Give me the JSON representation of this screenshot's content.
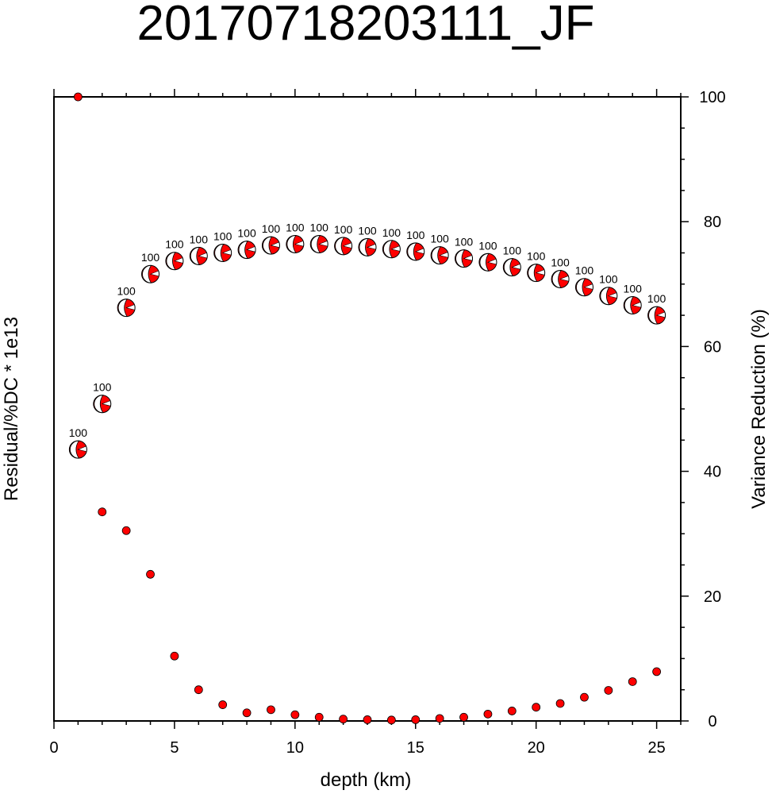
{
  "chart_data": {
    "type": "scatter",
    "title": "20170718203111_JF",
    "xlabel": "depth (km)",
    "ylabel_left": "Residual/%DC * 1e13",
    "ylabel_right": "Variance Reduction (%)",
    "xlim": [
      0,
      26
    ],
    "ylim_right": [
      0,
      100
    ],
    "x_ticks": [
      0,
      5,
      10,
      15,
      20,
      25
    ],
    "y_ticks_right": [
      0,
      20,
      40,
      60,
      80,
      100
    ],
    "grid": false,
    "marker_color": "#ff0000",
    "series": [
      {
        "marker": "dot",
        "x": [
          1,
          2,
          3,
          4,
          5,
          6,
          7,
          8,
          9,
          10,
          11,
          12,
          13,
          14,
          15,
          16,
          17,
          18,
          19,
          20,
          21,
          22,
          23,
          24,
          25
        ],
        "values": [
          100,
          33.5,
          30.5,
          23.5,
          10.4,
          5.0,
          2.6,
          1.3,
          1.8,
          1.0,
          0.6,
          0.3,
          0.2,
          0.15,
          0.2,
          0.4,
          0.6,
          1.1,
          1.6,
          2.2,
          2.8,
          3.8,
          4.9,
          6.3,
          7.9
        ]
      },
      {
        "marker": "focal-mechanism",
        "x": [
          1,
          2,
          3,
          4,
          5,
          6,
          7,
          8,
          9,
          10,
          11,
          12,
          13,
          14,
          15,
          16,
          17,
          18,
          19,
          20,
          21,
          22,
          23,
          24,
          25
        ],
        "values": [
          43.5,
          50.8,
          66.2,
          71.6,
          73.7,
          74.5,
          75.0,
          75.5,
          76.2,
          76.4,
          76.4,
          76.1,
          75.9,
          75.6,
          75.2,
          74.6,
          74.1,
          73.5,
          72.7,
          71.8,
          70.8,
          69.5,
          68.1,
          66.6,
          65.0
        ],
        "labels": [
          "100",
          "100",
          "100",
          "100",
          "100",
          "100",
          "100",
          "100",
          "100",
          "100",
          "100",
          "100",
          "100",
          "100",
          "100",
          "100",
          "100",
          "100",
          "100",
          "100",
          "100",
          "100",
          "100",
          "100",
          "100"
        ]
      }
    ]
  }
}
